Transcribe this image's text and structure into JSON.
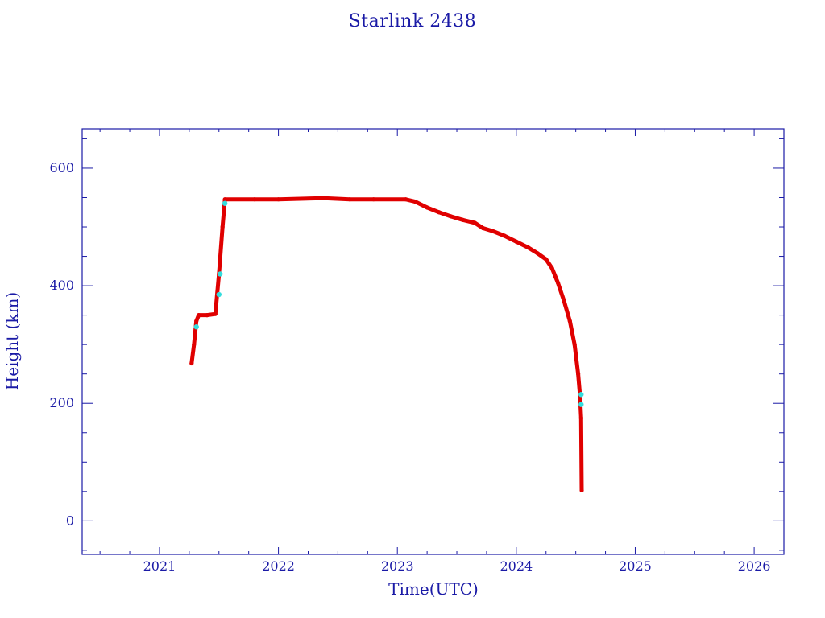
{
  "chart_data": {
    "type": "scatter",
    "title": "Starlink 2438",
    "xlabel": "Time(UTC)",
    "ylabel": "Height (km)",
    "xlim": [
      2020.35,
      2026.25
    ],
    "ylim": [
      -57,
      667
    ],
    "x_ticks": [
      2021,
      2022,
      2023,
      2024,
      2025,
      2026
    ],
    "y_ticks": [
      0,
      200,
      400,
      600
    ],
    "grid": false,
    "legend": "none",
    "colors": {
      "axis": "#1a1aa6",
      "series": "#e00000",
      "highlight": "#33dddd",
      "background": "#ffffff"
    },
    "series": [
      {
        "values": [
          [
            2021.27,
            268
          ],
          [
            2021.29,
            300
          ],
          [
            2021.31,
            340
          ],
          [
            2021.33,
            350
          ],
          [
            2021.4,
            350
          ],
          [
            2021.47,
            352
          ],
          [
            2021.5,
            420
          ],
          [
            2021.53,
            500
          ],
          [
            2021.55,
            547
          ],
          [
            2021.8,
            547
          ],
          [
            2022.0,
            547
          ],
          [
            2022.38,
            549
          ],
          [
            2022.6,
            547
          ],
          [
            2022.8,
            547
          ],
          [
            2023.07,
            547
          ],
          [
            2023.15,
            543
          ],
          [
            2023.25,
            533
          ],
          [
            2023.35,
            525
          ],
          [
            2023.45,
            518
          ],
          [
            2023.55,
            512
          ],
          [
            2023.65,
            507
          ],
          [
            2023.72,
            498
          ],
          [
            2023.8,
            493
          ],
          [
            2023.9,
            485
          ],
          [
            2024.0,
            475
          ],
          [
            2024.1,
            465
          ],
          [
            2024.18,
            455
          ],
          [
            2024.25,
            445
          ],
          [
            2024.3,
            430
          ],
          [
            2024.35,
            405
          ],
          [
            2024.4,
            375
          ],
          [
            2024.45,
            340
          ],
          [
            2024.49,
            300
          ],
          [
            2024.52,
            250
          ],
          [
            2024.535,
            215
          ],
          [
            2024.545,
            175
          ],
          [
            2024.55,
            52
          ]
        ]
      }
    ],
    "highlight_points": [
      [
        2021.31,
        330
      ],
      [
        2021.5,
        385
      ],
      [
        2021.51,
        420
      ],
      [
        2021.55,
        540
      ],
      [
        2024.545,
        215
      ],
      [
        2024.545,
        198
      ]
    ]
  }
}
